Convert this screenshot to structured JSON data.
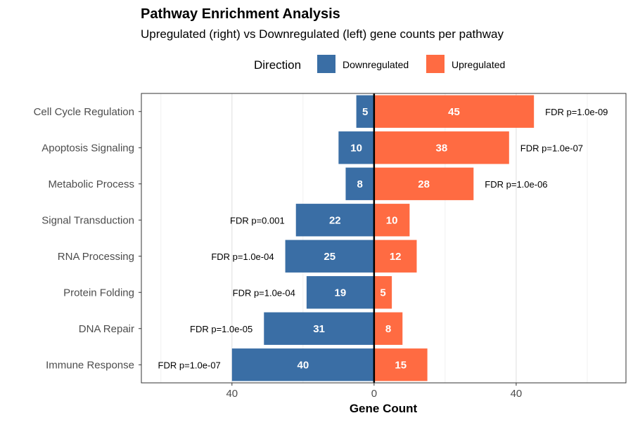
{
  "chart_data": {
    "type": "bar",
    "orientation": "horizontal-diverging",
    "title": "Pathway Enrichment Analysis",
    "subtitle": "Upregulated (right) vs Downregulated (left) gene counts per pathway",
    "xlabel": "Gene Count",
    "ylabel": "",
    "xlim": [
      -65.5,
      70.9
    ],
    "x_ticks": [
      -40,
      0,
      40
    ],
    "x_tick_labels": [
      "40",
      "0",
      "40"
    ],
    "grid": true,
    "legend": {
      "title": "Direction",
      "position": "top",
      "entries": [
        "Downregulated",
        "Upregulated"
      ]
    },
    "colors": {
      "Downregulated": "#3A6EA5",
      "Upregulated": "#FF6B42"
    },
    "categories": [
      "Cell Cycle Regulation",
      "Apoptosis Signaling",
      "Metabolic Process",
      "Signal Transduction",
      "RNA Processing",
      "Protein Folding",
      "DNA Repair",
      "Immune Response"
    ],
    "series": [
      {
        "name": "Downregulated",
        "values": [
          5,
          10,
          8,
          22,
          25,
          19,
          31,
          40
        ]
      },
      {
        "name": "Upregulated",
        "values": [
          45,
          38,
          28,
          10,
          12,
          5,
          8,
          15
        ]
      }
    ],
    "annotations": [
      "FDR p=1.0e-09",
      "FDR p=1.0e-07",
      "FDR p=1.0e-06",
      "FDR p=0.001",
      "FDR p=1.0e-04",
      "FDR p=1.0e-04",
      "FDR p=1.0e-05",
      "FDR p=1.0e-07"
    ]
  }
}
